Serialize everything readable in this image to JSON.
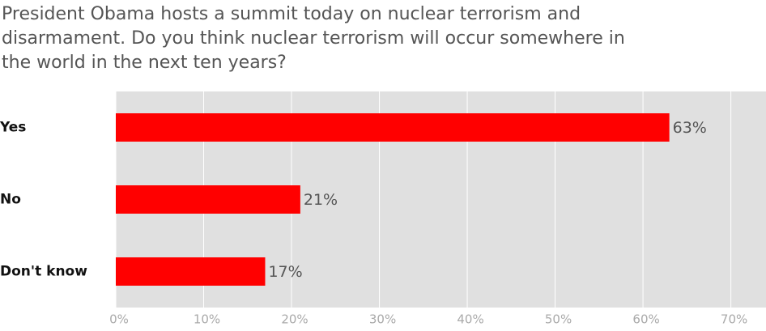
{
  "chart_data": {
    "type": "bar",
    "orientation": "horizontal",
    "title": [
      "President Obama hosts a summit today on nuclear terrorism and",
      "disarmament. Do you think nuclear terrorism will occur somewhere in",
      "the world in the next ten years?"
    ],
    "categories": [
      "Yes",
      "No",
      "Don't know"
    ],
    "values": [
      63,
      21,
      17
    ],
    "value_labels": [
      "63%",
      "21%",
      "17%"
    ],
    "color": "#ff0000",
    "xlim": [
      0,
      74
    ],
    "xticks": [
      {
        "value": 0,
        "label": "0%"
      },
      {
        "value": 10,
        "label": "10%"
      },
      {
        "value": 20,
        "label": "20%"
      },
      {
        "value": 30,
        "label": "30%"
      },
      {
        "value": 40,
        "label": "40%"
      },
      {
        "value": 50,
        "label": "50%"
      },
      {
        "value": 60,
        "label": "60%"
      },
      {
        "value": 70,
        "label": "70%"
      }
    ],
    "grid": true
  }
}
